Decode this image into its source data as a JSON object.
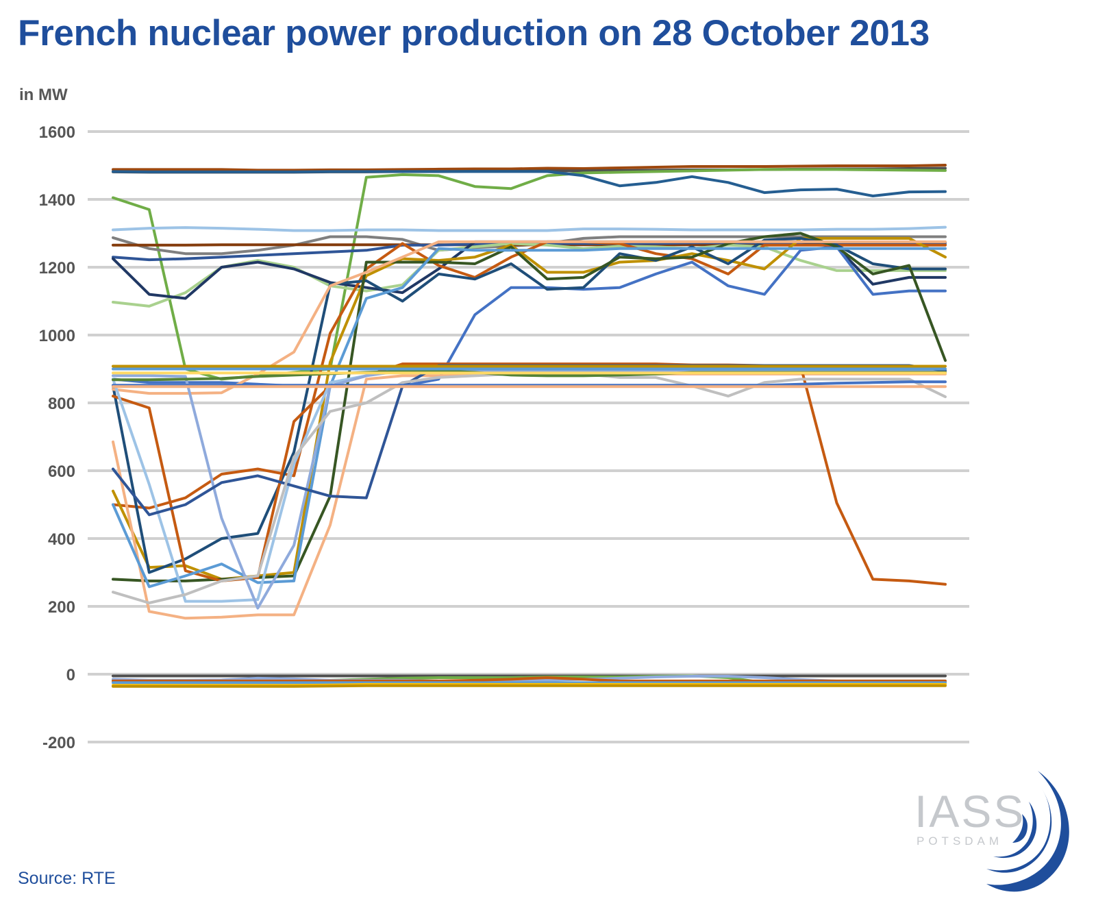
{
  "chart_data": {
    "type": "line",
    "title": "French nuclear power production on 28 October 2013",
    "ylabel": "in MW",
    "ylim": [
      -200,
      1600
    ],
    "yticks": [
      1600,
      1400,
      1200,
      1000,
      800,
      600,
      400,
      200,
      0,
      -200
    ],
    "grid": true,
    "legend": "none",
    "x": [
      0,
      1,
      2,
      3,
      4,
      5,
      6,
      7,
      8,
      9,
      10,
      11,
      12,
      13,
      14,
      15,
      16,
      17,
      18,
      19,
      20,
      21,
      22,
      23
    ],
    "series": [
      {
        "color": "#9e480e",
        "values": [
          1488,
          1488,
          1488,
          1488,
          1486,
          1486,
          1487,
          1487,
          1488,
          1489,
          1490,
          1490,
          1492,
          1491,
          1493,
          1495,
          1497,
          1497,
          1497,
          1498,
          1499,
          1499,
          1499,
          1501
        ]
      },
      {
        "color": "#4f4f4f",
        "values": [
          1481,
          1480,
          1480,
          1480,
          1480,
          1480,
          1481,
          1481,
          1482,
          1482,
          1483,
          1483,
          1484,
          1484,
          1485,
          1486,
          1487,
          1487,
          1488,
          1489,
          1490,
          1490,
          1491,
          1492
        ]
      },
      {
        "color": "#70ad47",
        "values": [
          1405,
          1370,
          900,
          870,
          880,
          890,
          900,
          1465,
          1473,
          1470,
          1438,
          1432,
          1470,
          1478,
          1480,
          1482,
          1484,
          1486,
          1488,
          1488,
          1488,
          1487,
          1486,
          1485
        ]
      },
      {
        "color": "#255e91",
        "values": [
          1482,
          1481,
          1481,
          1481,
          1481,
          1481,
          1482,
          1482,
          1482,
          1482,
          1482,
          1482,
          1482,
          1470,
          1440,
          1450,
          1467,
          1450,
          1420,
          1428,
          1430,
          1410,
          1422,
          1423
        ]
      },
      {
        "color": "#9dc3e6",
        "values": [
          1310,
          1315,
          1317,
          1315,
          1312,
          1308,
          1308,
          1310,
          1310,
          1308,
          1308,
          1308,
          1308,
          1313,
          1313,
          1312,
          1310,
          1310,
          1310,
          1310,
          1312,
          1312,
          1314,
          1318
        ]
      },
      {
        "color": "#7f7f7f",
        "values": [
          1287,
          1255,
          1240,
          1240,
          1250,
          1265,
          1290,
          1290,
          1282,
          1250,
          1258,
          1262,
          1270,
          1285,
          1290,
          1290,
          1290,
          1290,
          1290,
          1290,
          1290,
          1290,
          1290,
          1290
        ]
      },
      {
        "color": "#843c0c",
        "values": [
          1265,
          1265,
          1265,
          1266,
          1266,
          1266,
          1266,
          1266,
          1266,
          1266,
          1266,
          1266,
          1266,
          1266,
          1266,
          1266,
          1266,
          1266,
          1266,
          1266,
          1266,
          1266,
          1266,
          1266
        ]
      },
      {
        "color": "#2f5597",
        "values": [
          1230,
          1222,
          1225,
          1230,
          1235,
          1240,
          1245,
          1250,
          1265,
          1265,
          1268,
          1270,
          1270,
          1270,
          1270,
          1270,
          1272,
          1272,
          1272,
          1272,
          1272,
          1272,
          1272,
          1272
        ]
      },
      {
        "color": "#a9d18e",
        "values": [
          1097,
          1085,
          1125,
          1200,
          1220,
          1200,
          1145,
          1130,
          1148,
          1250,
          1260,
          1270,
          1265,
          1255,
          1262,
          1260,
          1255,
          1265,
          1260,
          1220,
          1190,
          1190,
          1190,
          1190
        ]
      },
      {
        "color": "#203864",
        "values": [
          1225,
          1120,
          1108,
          1200,
          1215,
          1195,
          1155,
          1140,
          1125,
          1195,
          1275,
          1275,
          1275,
          1275,
          1275,
          1275,
          1275,
          1275,
          1275,
          1275,
          1260,
          1150,
          1170,
          1170
        ]
      },
      {
        "color": "#4472c4",
        "values": [
          870,
          860,
          860,
          860,
          855,
          850,
          850,
          850,
          850,
          870,
          1060,
          1140,
          1140,
          1135,
          1140,
          1180,
          1215,
          1145,
          1120,
          1250,
          1260,
          1120,
          1130,
          1130
        ]
      },
      {
        "color": "#c55a11",
        "values": [
          500,
          490,
          520,
          590,
          605,
          585,
          1005,
          1195,
          1270,
          1205,
          1170,
          1230,
          1275,
          1275,
          1270,
          1240,
          1225,
          1180,
          1265,
          1265,
          1265,
          1265,
          1265,
          1265
        ]
      },
      {
        "color": "#bf9000",
        "values": [
          540,
          315,
          320,
          280,
          290,
          300,
          920,
          1175,
          1225,
          1220,
          1230,
          1265,
          1185,
          1185,
          1215,
          1220,
          1240,
          1220,
          1195,
          1285,
          1285,
          1285,
          1285,
          1230
        ]
      },
      {
        "color": "#1f4e79",
        "values": [
          850,
          300,
          340,
          400,
          415,
          655,
          1150,
          1160,
          1100,
          1180,
          1165,
          1210,
          1135,
          1140,
          1240,
          1220,
          1260,
          1210,
          1280,
          1285,
          1265,
          1210,
          1195,
          1195
        ]
      },
      {
        "color": "#375623",
        "values": [
          280,
          275,
          275,
          280,
          285,
          290,
          525,
          1215,
          1215,
          1215,
          1210,
          1260,
          1165,
          1170,
          1230,
          1225,
          1230,
          1270,
          1290,
          1300,
          1260,
          1180,
          1205,
          925
        ]
      },
      {
        "color": "#f4b183",
        "values": [
          685,
          185,
          165,
          168,
          175,
          175,
          440,
          870,
          880,
          880,
          882,
          885,
          885,
          885,
          885,
          885,
          885,
          885,
          885,
          885,
          885,
          885,
          885,
          885
        ]
      },
      {
        "color": "#c55a11",
        "values": [
          820,
          785,
          305,
          275,
          285,
          745,
          850,
          880,
          915,
          915,
          915,
          915,
          915,
          915,
          915,
          915,
          912,
          912,
          910,
          910,
          505,
          280,
          275,
          265
        ]
      },
      {
        "color": "#f4b183",
        "values": [
          840,
          828,
          828,
          830,
          885,
          950,
          1145,
          1185,
          1230,
          1275,
          1275,
          1275,
          1275,
          1275,
          1275,
          1275,
          1275,
          1275,
          1275,
          1275,
          1275,
          1275,
          1275,
          1275
        ]
      },
      {
        "color": "#5b9bd5",
        "values": [
          500,
          258,
          290,
          325,
          270,
          275,
          850,
          1108,
          1140,
          1255,
          1250,
          1250,
          1250,
          1250,
          1255,
          1255,
          1255,
          1255,
          1255,
          1255,
          1255,
          1255,
          1255,
          1255
        ]
      },
      {
        "color": "#9dc3e6",
        "values": [
          870,
          560,
          215,
          215,
          220,
          620,
          860,
          880,
          900,
          900,
          900,
          900,
          900,
          900,
          900,
          900,
          900,
          900,
          900,
          900,
          900,
          900,
          900,
          900
        ]
      },
      {
        "color": "#8faadc",
        "values": [
          880,
          880,
          878,
          460,
          195,
          380,
          850,
          880,
          895,
          895,
          895,
          895,
          895,
          895,
          895,
          895,
          895,
          895,
          895,
          895,
          895,
          895,
          895,
          895
        ]
      },
      {
        "color": "#2f5597",
        "values": [
          605,
          470,
          500,
          565,
          585,
          555,
          525,
          520,
          850,
          910,
          910,
          910,
          910,
          910,
          910,
          910,
          910,
          910,
          910,
          910,
          910,
          910,
          910,
          895
        ]
      },
      {
        "color": "#bfbfbf",
        "values": [
          242,
          210,
          235,
          275,
          290,
          640,
          775,
          800,
          860,
          875,
          880,
          885,
          885,
          885,
          875,
          875,
          850,
          820,
          860,
          870,
          870,
          870,
          870,
          818
        ]
      },
      {
        "color": "#bf9000",
        "values": [
          908,
          908,
          908,
          908,
          908,
          908,
          908,
          908,
          908,
          908,
          908,
          908,
          908,
          908,
          908,
          908,
          908,
          908,
          908,
          908,
          908,
          908,
          908,
          908
        ]
      },
      {
        "color": "#548235",
        "values": [
          868,
          868,
          870,
          872,
          878,
          882,
          886,
          890,
          893,
          895,
          890,
          882,
          880,
          880,
          882,
          885,
          890,
          890,
          890,
          890,
          890,
          890,
          890,
          890
        ]
      },
      {
        "color": "#ffd966",
        "values": [
          888,
          888,
          888,
          888,
          888,
          888,
          888,
          888,
          888,
          888,
          888,
          888,
          888,
          888,
          888,
          888,
          888,
          888,
          888,
          888,
          888,
          888,
          888,
          888
        ]
      },
      {
        "color": "#5b9bd5",
        "values": [
          900,
          900,
          900,
          900,
          900,
          900,
          900,
          900,
          900,
          900,
          900,
          900,
          900,
          900,
          900,
          900,
          900,
          900,
          900,
          900,
          900,
          900,
          900,
          900
        ]
      },
      {
        "color": "#4472c4",
        "values": [
          852,
          852,
          852,
          852,
          852,
          852,
          852,
          852,
          852,
          852,
          852,
          852,
          852,
          852,
          852,
          852,
          852,
          852,
          852,
          855,
          858,
          860,
          862,
          862
        ]
      },
      {
        "color": "#f4b183",
        "values": [
          848,
          848,
          848,
          848,
          848,
          848,
          848,
          848,
          848,
          848,
          848,
          848,
          848,
          848,
          848,
          848,
          848,
          848,
          848,
          848,
          848,
          848,
          848,
          848
        ]
      },
      {
        "color": "#4f4f4f",
        "values": [
          -5,
          -5,
          -5,
          -5,
          -5,
          -5,
          -5,
          -5,
          -5,
          -5,
          -5,
          -5,
          -5,
          -5,
          -5,
          -5,
          -5,
          -5,
          -5,
          -5,
          -5,
          -5,
          -5,
          -5
        ]
      },
      {
        "color": "#70ad47",
        "values": [
          -18,
          -18,
          -18,
          -18,
          -18,
          -18,
          -18,
          -15,
          -12,
          -10,
          -10,
          -10,
          -8,
          -8,
          -8,
          -6,
          -5,
          -10,
          -25,
          -25,
          -25,
          -25,
          -25,
          -25
        ]
      },
      {
        "color": "#8faadc",
        "values": [
          -15,
          -18,
          -18,
          -17,
          -12,
          -14,
          -18,
          -18,
          -18,
          -20,
          -22,
          -20,
          -18,
          -15,
          -12,
          -8,
          -6,
          -6,
          -10,
          -16,
          -20,
          -20,
          -20,
          -20
        ]
      },
      {
        "color": "#c55a11",
        "values": [
          -20,
          -20,
          -20,
          -20,
          -20,
          -20,
          -20,
          -20,
          -20,
          -20,
          -18,
          -15,
          -10,
          -15,
          -20,
          -20,
          -20,
          -20,
          -20,
          -20,
          -20,
          -20,
          -20,
          -20
        ]
      },
      {
        "color": "#5b9bd5",
        "values": [
          -25,
          -25,
          -25,
          -25,
          -25,
          -25,
          -25,
          -25,
          -25,
          -25,
          -25,
          -25,
          -25,
          -25,
          -25,
          -25,
          -25,
          -25,
          -25,
          -25,
          -25,
          -25,
          -25,
          -25
        ]
      },
      {
        "color": "#ffc000",
        "values": [
          -33,
          -33,
          -33,
          -33,
          -33,
          -33,
          -32,
          -30,
          -30,
          -30,
          -30,
          -30,
          -30,
          -30,
          -30,
          -30,
          -30,
          -30,
          -30,
          -30,
          -30,
          -30,
          -30,
          -30
        ]
      },
      {
        "color": "#bf9000",
        "values": [
          -36,
          -36,
          -36,
          -36,
          -36,
          -36,
          -35,
          -34,
          -34,
          -34,
          -34,
          -34,
          -34,
          -34,
          -34,
          -34,
          -34,
          -34,
          -34,
          -34,
          -34,
          -34,
          -34,
          -34
        ]
      }
    ]
  },
  "source": "Source: RTE",
  "logo": {
    "name": "IASS",
    "sub": "POTSDAM",
    "color": "#1f4e9c"
  }
}
